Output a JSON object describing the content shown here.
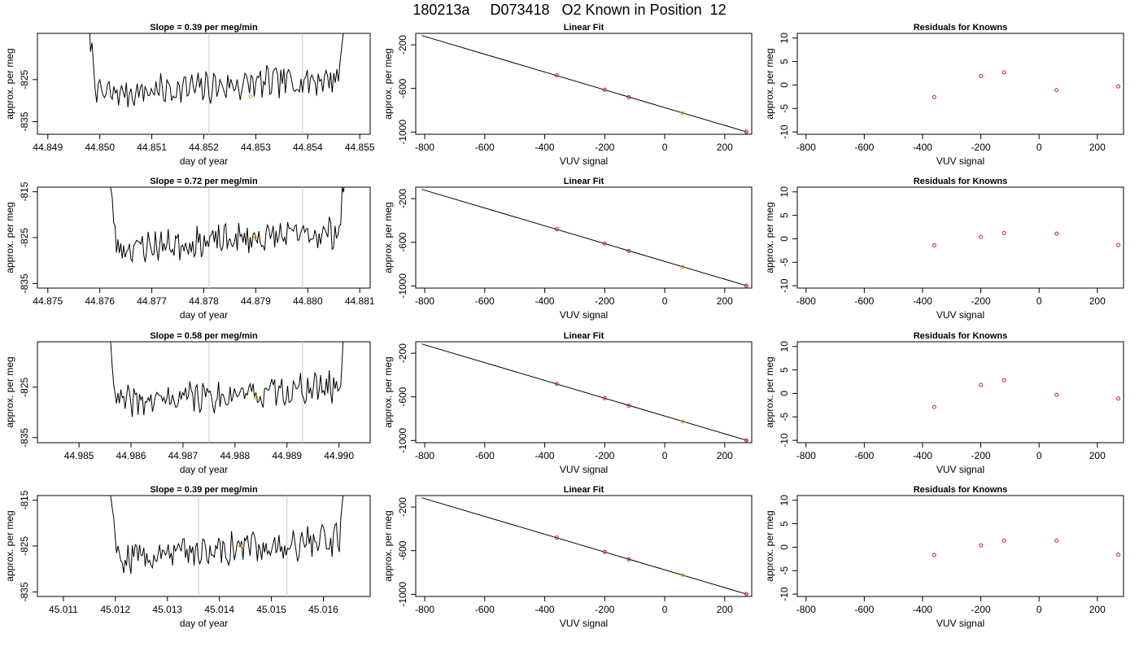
{
  "title": "180213a     D073418   O2 Known in Position  12",
  "style": {
    "trace": "#000000",
    "vline": "#c8c8c8",
    "point_red": "#cc2222",
    "point_orange": "#ff9900",
    "frame": "#000000"
  },
  "rows": [
    {
      "left": {
        "title": "Slope =  0.39  per meg/min",
        "xlabel": "day of year",
        "ylabel": "approx. per meg",
        "xlim": [
          44.8488,
          44.8552
        ],
        "ylim": [
          -838,
          -814
        ],
        "xticks": [
          44.849,
          44.85,
          44.851,
          44.852,
          44.853,
          44.854,
          44.855
        ],
        "xticklabels": [
          "44.849",
          "44.850",
          "44.851",
          "44.852",
          "44.853",
          "44.854",
          "44.855"
        ],
        "yticks": [
          -825,
          -835
        ],
        "yticklabels": [
          "-825",
          "-835"
        ],
        "vlines": [
          44.8521,
          44.8539
        ],
        "orange_point": [
          44.8529,
          -829
        ],
        "trace_start": 44.8497,
        "trace_end": 44.8548,
        "seed": 7
      },
      "fit": {
        "title": "Linear Fit",
        "xlabel": "VUV signal",
        "ylabel": "approx. per meg",
        "xlim": [
          -830,
          290
        ],
        "ylim": [
          -1020,
          -95
        ],
        "xticks": [
          -800,
          -600,
          -400,
          -200,
          0,
          200
        ],
        "xticklabels": [
          "-800",
          "-600",
          "-400",
          "-200",
          "0",
          "200"
        ],
        "yticks": [
          -200,
          -600,
          -1000
        ],
        "yticklabels": [
          "-200",
          "-600",
          "-1000"
        ],
        "line": [
          [
            -810,
            -115
          ],
          [
            275,
            -1000
          ]
        ],
        "points": [
          [
            -360,
            -480
          ],
          [
            -200,
            -612
          ],
          [
            -120,
            -680
          ],
          [
            60,
            -826
          ],
          [
            272,
            -998
          ]
        ],
        "orange_index": 3
      },
      "resid": {
        "title": "Residuals for Knowns",
        "xlabel": "VUV signal",
        "ylabel": "approx. per meg",
        "xlim": [
          -830,
          290
        ],
        "ylim": [
          -10.5,
          11
        ],
        "xticks": [
          -800,
          -600,
          -400,
          -200,
          0,
          200
        ],
        "xticklabels": [
          "-800",
          "-600",
          "-400",
          "-200",
          "0",
          "200"
        ],
        "yticks": [
          10,
          5,
          0,
          -5,
          -10
        ],
        "yticklabels": [
          "10",
          "5",
          "0",
          "-5",
          "-10"
        ],
        "points": [
          [
            -360,
            -2.6
          ],
          [
            -200,
            1.9
          ],
          [
            -120,
            2.7
          ],
          [
            60,
            -1.1
          ],
          [
            272,
            -0.3
          ]
        ]
      }
    },
    {
      "left": {
        "title": "Slope =  0.72  per meg/min",
        "xlabel": "day of year",
        "ylabel": "approx. per meg",
        "xlim": [
          44.8748,
          44.8812
        ],
        "ylim": [
          -836,
          -814
        ],
        "xticks": [
          44.875,
          44.876,
          44.877,
          44.878,
          44.879,
          44.88,
          44.881
        ],
        "xticklabels": [
          "44.875",
          "44.876",
          "44.877",
          "44.878",
          "44.879",
          "44.880",
          "44.881"
        ],
        "yticks": [
          -815,
          -825,
          -835
        ],
        "yticklabels": [
          "-815",
          "-825",
          "-835"
        ],
        "vlines": [
          44.8781,
          44.8799
        ],
        "orange_point": [
          44.879,
          -825
        ],
        "trace_start": 44.8761,
        "trace_end": 44.8808,
        "seed": 23
      },
      "fit": {
        "title": "Linear Fit",
        "xlabel": "VUV signal",
        "ylabel": "approx. per meg",
        "xlim": [
          -830,
          290
        ],
        "ylim": [
          -1020,
          -95
        ],
        "xticks": [
          -800,
          -600,
          -400,
          -200,
          0,
          200
        ],
        "xticklabels": [
          "-800",
          "-600",
          "-400",
          "-200",
          "0",
          "200"
        ],
        "yticks": [
          -200,
          -600,
          -1000
        ],
        "yticklabels": [
          "-200",
          "-600",
          "-1000"
        ],
        "line": [
          [
            -810,
            -115
          ],
          [
            275,
            -1000
          ]
        ],
        "points": [
          [
            -360,
            -480
          ],
          [
            -200,
            -612
          ],
          [
            -120,
            -680
          ],
          [
            60,
            -826
          ],
          [
            272,
            -998
          ]
        ],
        "orange_index": 3
      },
      "resid": {
        "title": "Residuals for Knowns",
        "xlabel": "VUV signal",
        "ylabel": "approx. per meg",
        "xlim": [
          -830,
          290
        ],
        "ylim": [
          -10.5,
          11
        ],
        "xticks": [
          -800,
          -600,
          -400,
          -200,
          0,
          200
        ],
        "xticklabels": [
          "-800",
          "-600",
          "-400",
          "-200",
          "0",
          "200"
        ],
        "yticks": [
          10,
          5,
          0,
          -5,
          -10
        ],
        "yticklabels": [
          "10",
          "5",
          "0",
          "-5",
          "-10"
        ],
        "points": [
          [
            -360,
            -1.4
          ],
          [
            -200,
            0.4
          ],
          [
            -120,
            1.2
          ],
          [
            60,
            1.1
          ],
          [
            272,
            -1.3
          ]
        ]
      }
    },
    {
      "left": {
        "title": "Slope =  0.58  per meg/min",
        "xlabel": "day of year",
        "ylabel": "approx. per meg",
        "xlim": [
          44.9842,
          44.9906
        ],
        "ylim": [
          -836,
          -816
        ],
        "xticks": [
          44.985,
          44.986,
          44.987,
          44.988,
          44.989,
          44.99
        ],
        "xticklabels": [
          "44.985",
          "44.986",
          "44.987",
          "44.988",
          "44.989",
          "44.990"
        ],
        "yticks": [
          -825,
          -835
        ],
        "yticklabels": [
          "-825",
          "-835"
        ],
        "vlines": [
          44.9875,
          44.9893
        ],
        "orange_point": [
          44.9884,
          -827
        ],
        "trace_start": 44.9855,
        "trace_end": 44.9902,
        "seed": 41
      },
      "fit": {
        "title": "Linear Fit",
        "xlabel": "VUV signal",
        "ylabel": "approx. per meg",
        "xlim": [
          -830,
          290
        ],
        "ylim": [
          -1020,
          -95
        ],
        "xticks": [
          -800,
          -600,
          -400,
          -200,
          0,
          200
        ],
        "xticklabels": [
          "-800",
          "-600",
          "-400",
          "-200",
          "0",
          "200"
        ],
        "yticks": [
          -200,
          -600,
          -1000
        ],
        "yticklabels": [
          "-200",
          "-600",
          "-1000"
        ],
        "line": [
          [
            -810,
            -115
          ],
          [
            275,
            -1000
          ]
        ],
        "points": [
          [
            -360,
            -480
          ],
          [
            -200,
            -612
          ],
          [
            -120,
            -680
          ],
          [
            60,
            -826
          ],
          [
            272,
            -998
          ]
        ],
        "orange_index": 3
      },
      "resid": {
        "title": "Residuals for Knowns",
        "xlabel": "VUV signal",
        "ylabel": "approx. per meg",
        "xlim": [
          -830,
          290
        ],
        "ylim": [
          -10.5,
          11
        ],
        "xticks": [
          -800,
          -600,
          -400,
          -200,
          0,
          200
        ],
        "xticklabels": [
          "-800",
          "-600",
          "-400",
          "-200",
          "0",
          "200"
        ],
        "yticks": [
          10,
          5,
          0,
          -5,
          -10
        ],
        "yticklabels": [
          "10",
          "5",
          "0",
          "-5",
          "-10"
        ],
        "points": [
          [
            -360,
            -2.9
          ],
          [
            -200,
            1.8
          ],
          [
            -120,
            2.8
          ],
          [
            60,
            -0.3
          ],
          [
            272,
            -1.1
          ]
        ]
      }
    },
    {
      "left": {
        "title": "Slope =  0.39  per meg/min",
        "xlabel": "day of year",
        "ylabel": "approx. per meg",
        "xlim": [
          45.0105,
          45.0169
        ],
        "ylim": [
          -836,
          -814
        ],
        "xticks": [
          45.011,
          45.012,
          45.013,
          45.014,
          45.015,
          45.016
        ],
        "xticklabels": [
          "45.011",
          "45.012",
          "45.013",
          "45.014",
          "45.015",
          "45.016"
        ],
        "yticks": [
          -815,
          -825,
          -835
        ],
        "yticklabels": [
          "-815",
          "-825",
          "-835"
        ],
        "vlines": [
          45.0136,
          45.0153
        ],
        "orange_point": [
          45.0144,
          -825
        ],
        "trace_start": 45.0118,
        "trace_end": 45.0165,
        "seed": 59
      },
      "fit": {
        "title": "Linear Fit",
        "xlabel": "VUV signal",
        "ylabel": "approx. per meg",
        "xlim": [
          -830,
          290
        ],
        "ylim": [
          -1020,
          -95
        ],
        "xticks": [
          -800,
          -600,
          -400,
          -200,
          0,
          200
        ],
        "xticklabels": [
          "-800",
          "-600",
          "-400",
          "-200",
          "0",
          "200"
        ],
        "yticks": [
          -200,
          -600,
          -1000
        ],
        "yticklabels": [
          "-200",
          "-600",
          "-1000"
        ],
        "line": [
          [
            -810,
            -115
          ],
          [
            275,
            -1000
          ]
        ],
        "points": [
          [
            -360,
            -480
          ],
          [
            -200,
            -612
          ],
          [
            -120,
            -680
          ],
          [
            60,
            -826
          ],
          [
            272,
            -998
          ]
        ],
        "orange_index": 3
      },
      "resid": {
        "title": "Residuals for Knowns",
        "xlabel": "VUV signal",
        "ylabel": "approx. per meg",
        "xlim": [
          -830,
          290
        ],
        "ylim": [
          -10.5,
          11
        ],
        "xticks": [
          -800,
          -600,
          -400,
          -200,
          0,
          200
        ],
        "xticklabels": [
          "-800",
          "-600",
          "-400",
          "-200",
          "0",
          "200"
        ],
        "yticks": [
          10,
          5,
          0,
          -5,
          -10
        ],
        "yticklabels": [
          "10",
          "5",
          "0",
          "-5",
          "-10"
        ],
        "points": [
          [
            -360,
            -1.7
          ],
          [
            -200,
            0.4
          ],
          [
            -120,
            1.4
          ],
          [
            60,
            1.4
          ],
          [
            272,
            -1.6
          ]
        ]
      }
    }
  ],
  "chart_data": [
    {
      "type": "line",
      "title": "Slope =  0.39  per meg/min",
      "xlabel": "day of year",
      "ylabel": "approx. per meg",
      "xlim": [
        44.8488,
        44.8552
      ],
      "ylim": [
        -838,
        -814
      ],
      "vlines": [
        44.8521,
        44.8539
      ],
      "highlight": [
        44.8529,
        -829
      ]
    },
    {
      "type": "scatter",
      "title": "Linear Fit",
      "xlabel": "VUV signal",
      "ylabel": "approx. per meg",
      "x": [
        -360,
        -200,
        -120,
        60,
        272
      ],
      "y": [
        -480,
        -612,
        -680,
        -826,
        -998
      ]
    },
    {
      "type": "scatter",
      "title": "Residuals for Knowns",
      "xlabel": "VUV signal",
      "ylabel": "approx. per meg",
      "x": [
        -360,
        -200,
        -120,
        60,
        272
      ],
      "y": [
        -2.6,
        1.9,
        2.7,
        -1.1,
        -0.3
      ]
    },
    {
      "type": "line",
      "title": "Slope =  0.72  per meg/min",
      "xlabel": "day of year",
      "ylabel": "approx. per meg",
      "xlim": [
        44.8748,
        44.8812
      ],
      "ylim": [
        -836,
        -814
      ],
      "vlines": [
        44.8781,
        44.8799
      ],
      "highlight": [
        44.879,
        -825
      ]
    },
    {
      "type": "scatter",
      "title": "Linear Fit",
      "xlabel": "VUV signal",
      "ylabel": "approx. per meg",
      "x": [
        -360,
        -200,
        -120,
        60,
        272
      ],
      "y": [
        -480,
        -612,
        -680,
        -826,
        -998
      ]
    },
    {
      "type": "scatter",
      "title": "Residuals for Knowns",
      "xlabel": "VUV signal",
      "ylabel": "approx. per meg",
      "x": [
        -360,
        -200,
        -120,
        60,
        272
      ],
      "y": [
        -1.4,
        0.4,
        1.2,
        1.1,
        -1.3
      ]
    },
    {
      "type": "line",
      "title": "Slope =  0.58  per meg/min",
      "xlabel": "day of year",
      "ylabel": "approx. per meg",
      "xlim": [
        44.9842,
        44.9906
      ],
      "ylim": [
        -836,
        -816
      ],
      "vlines": [
        44.9875,
        44.9893
      ],
      "highlight": [
        44.9884,
        -827
      ]
    },
    {
      "type": "scatter",
      "title": "Linear Fit",
      "xlabel": "VUV signal",
      "ylabel": "approx. per meg",
      "x": [
        -360,
        -200,
        -120,
        60,
        272
      ],
      "y": [
        -480,
        -612,
        -680,
        -826,
        -998
      ]
    },
    {
      "type": "scatter",
      "title": "Residuals for Knowns",
      "xlabel": "VUV signal",
      "ylabel": "approx. per meg",
      "x": [
        -360,
        -200,
        -120,
        60,
        272
      ],
      "y": [
        -2.9,
        1.8,
        2.8,
        -0.3,
        -1.1
      ]
    },
    {
      "type": "line",
      "title": "Slope =  0.39  per meg/min",
      "xlabel": "day of year",
      "ylabel": "approx. per meg",
      "xlim": [
        45.0105,
        45.0169
      ],
      "ylim": [
        -836,
        -814
      ],
      "vlines": [
        45.0136,
        45.0153
      ],
      "highlight": [
        45.0144,
        -825
      ]
    },
    {
      "type": "scatter",
      "title": "Linear Fit",
      "xlabel": "VUV signal",
      "ylabel": "approx. per meg",
      "x": [
        -360,
        -200,
        -120,
        60,
        272
      ],
      "y": [
        -480,
        -612,
        -680,
        -826,
        -998
      ]
    },
    {
      "type": "scatter",
      "title": "Residuals for Knowns",
      "xlabel": "VUV signal",
      "ylabel": "approx. per meg",
      "x": [
        -360,
        -200,
        -120,
        60,
        272
      ],
      "y": [
        -1.7,
        0.4,
        1.4,
        1.4,
        -1.6
      ]
    }
  ]
}
